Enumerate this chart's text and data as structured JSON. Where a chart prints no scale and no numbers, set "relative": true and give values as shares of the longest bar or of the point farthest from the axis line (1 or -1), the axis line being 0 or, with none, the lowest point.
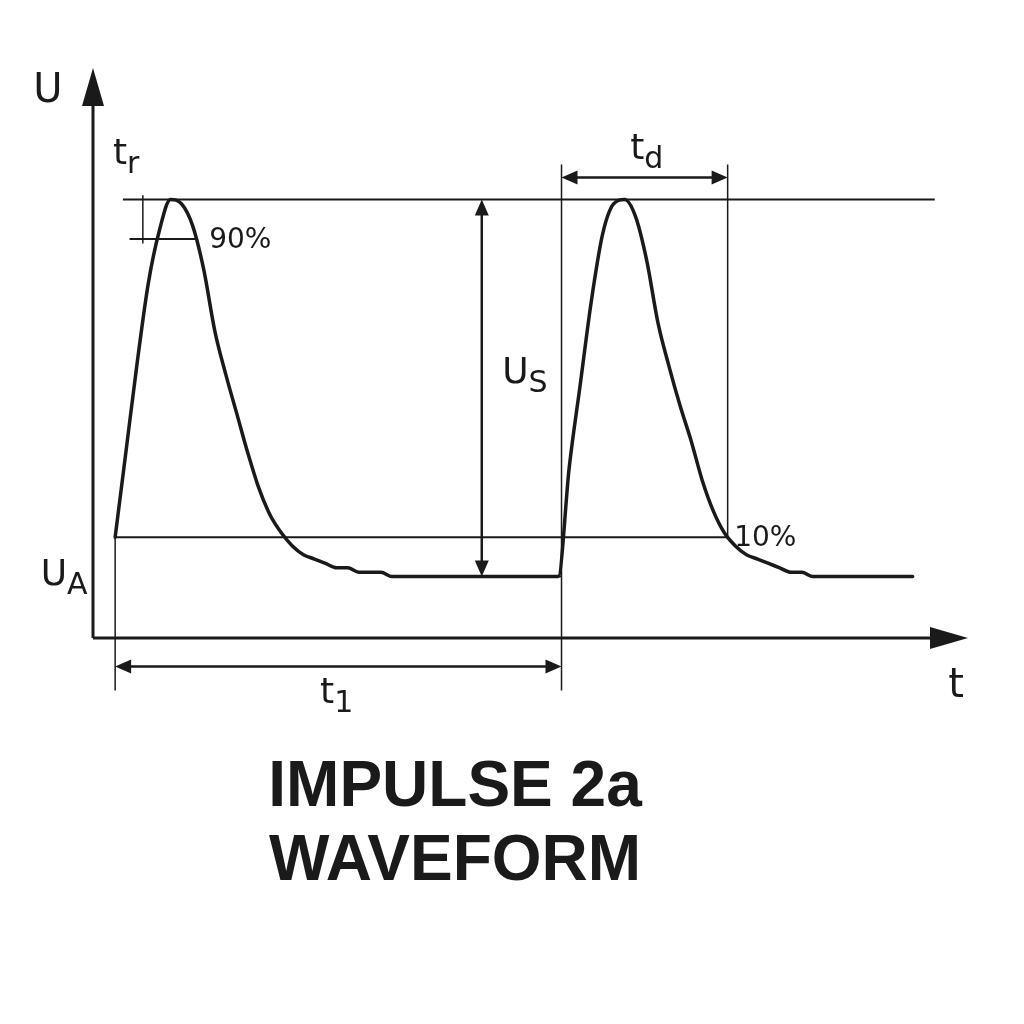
{
  "chart_data": {
    "type": "line",
    "title": "IMPULSE 2a WAVEFORM",
    "xlabel": "t",
    "ylabel": "U",
    "relative": true,
    "marker": "none",
    "line_style": "solid",
    "categories": [
      null,
      null,
      null,
      null,
      null,
      null,
      null,
      null,
      null,
      null,
      null,
      null,
      null,
      null,
      null,
      null,
      null,
      null,
      null,
      null,
      null,
      null,
      null,
      null,
      null,
      null,
      null,
      null,
      null,
      null,
      null,
      null,
      null,
      null,
      null,
      null,
      null,
      null,
      null,
      null,
      null,
      null,
      null,
      null,
      null,
      null,
      null,
      null,
      null,
      null,
      null,
      null,
      null,
      null,
      null,
      null,
      null,
      null,
      null,
      null,
      null,
      null,
      null,
      null,
      null,
      null,
      null,
      null,
      null,
      null,
      null,
      null,
      null
    ],
    "series": [
      {
        "color": "#1a1a1a",
        "values": [
          0.23,
          0.43,
          0.63,
          0.81,
          0.93,
          1.0,
          0.99,
          0.94,
          0.84,
          0.7,
          0.6,
          0.51,
          0.42,
          0.34,
          0.28,
          0.24,
          0.21,
          0.19,
          0.18,
          0.17,
          0.16,
          0.16,
          0.15,
          0.15,
          0.15,
          0.14,
          0.14,
          0.14,
          0.14,
          0.14,
          0.14,
          0.14,
          0.14,
          0.14,
          0.14,
          0.14,
          0.14,
          0.14,
          0.14,
          0.14,
          0.14,
          0.39,
          0.58,
          0.77,
          0.92,
          0.99,
          1.0,
          0.96,
          0.86,
          0.72,
          0.62,
          0.53,
          0.45,
          0.36,
          0.29,
          0.24,
          0.21,
          0.19,
          0.18,
          0.17,
          0.16,
          0.15,
          0.15,
          0.14,
          0.14,
          0.14,
          0.14,
          0.14,
          0.14,
          0.14,
          0.14,
          0.14,
          0.14
        ]
      }
    ],
    "ref_lines": [
      {
        "axis": "y",
        "value": 1
      },
      {
        "axis": "y",
        "value": 0.91
      },
      {
        "axis": "y",
        "value": 0.23
      }
    ],
    "annotations": [
      "t$_{r}$",
      "U$_{S}$",
      "t$_{d}$",
      "U$_{A}$",
      "t$_{1}$",
      "90%",
      "10%"
    ]
  }
}
